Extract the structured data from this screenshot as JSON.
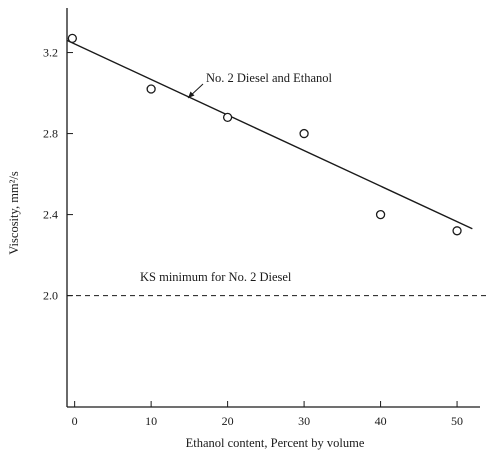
{
  "chart_data": {
    "type": "scatter",
    "xlabel": "Ethanol content, Percent by volume",
    "ylabel": "Viscosity, mm²/s",
    "xlim": [
      -1,
      53
    ],
    "ylim": [
      1.45,
      3.42
    ],
    "x_ticks": [
      0,
      10,
      20,
      30,
      40,
      50
    ],
    "y_ticks": [
      2.0,
      2.4,
      2.8,
      3.2
    ],
    "x_tick_labels": [
      "0",
      "10",
      "20",
      "30",
      "40",
      "50"
    ],
    "y_tick_labels": [
      "2.0",
      "2.4",
      "2.8",
      "3.2"
    ],
    "grid": false,
    "series": [
      {
        "name": "No. 2 Diesel and Ethanol",
        "kind": "points",
        "marker": "open-circle",
        "x": [
          -0.3,
          10,
          20,
          30,
          40,
          50
        ],
        "y": [
          3.27,
          3.02,
          2.88,
          2.8,
          2.4,
          2.32
        ]
      }
    ],
    "fit_line": {
      "label": "No. 2 Diesel and Ethanol",
      "x": [
        -1,
        52
      ],
      "y": [
        3.26,
        2.33
      ]
    },
    "reference_line": {
      "label": "KS minimum for No. 2 Diesel",
      "y": 2.0,
      "style": "dashed"
    }
  }
}
